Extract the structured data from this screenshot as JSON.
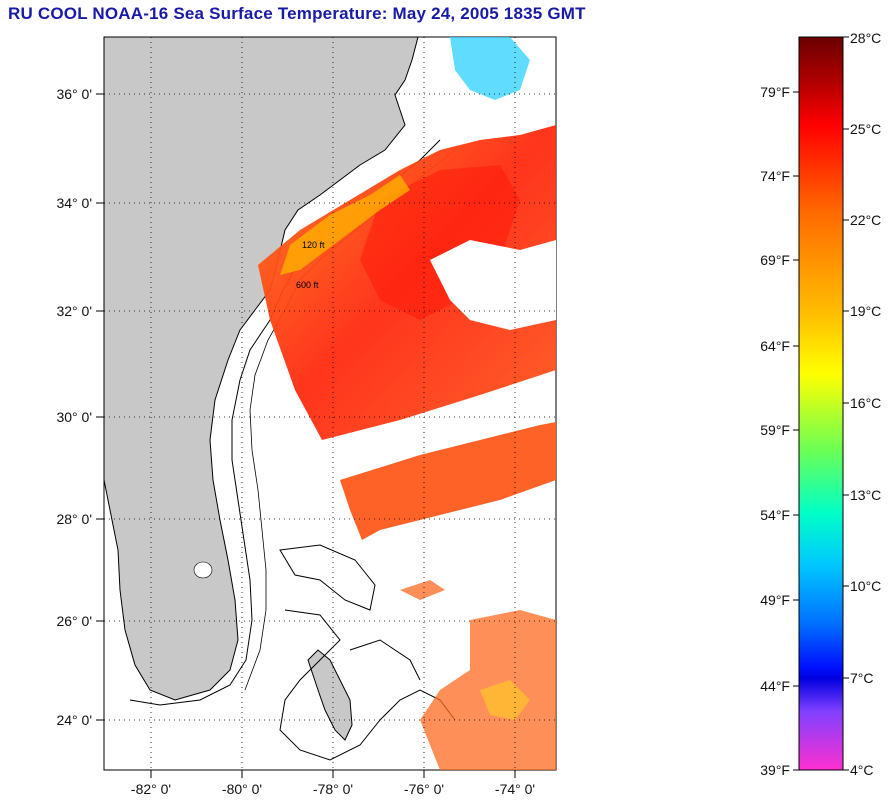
{
  "title": "RU COOL  NOAA-16  Sea Surface Temperature:  May 24, 2005 1835 GMT",
  "map": {
    "lon_range": [
      -83.0,
      -73.0
    ],
    "lat_range": [
      23.0,
      37.0
    ],
    "grid": "dotted",
    "lat_ticks": [
      "36° 0'",
      "34° 0'",
      "32° 0'",
      "30° 0'",
      "28° 0'",
      "26° 0'",
      "24° 0'"
    ],
    "lon_ticks": [
      "-82° 0'",
      "-80° 0'",
      "-78° 0'",
      "-76° 0'",
      "-74° 0'"
    ],
    "isobath_labels": [
      "120 ft",
      "600 ft"
    ],
    "colors": {
      "land": "#c8c8c8",
      "ocean_no_data": "#ffffff",
      "coast": "#000000",
      "grid": "#000000"
    }
  },
  "colorbar": {
    "range_c": [
      4,
      28
    ],
    "celsius_labels": [
      "28°C",
      "25°C",
      "22°C",
      "19°C",
      "16°C",
      "13°C",
      "10°C",
      "7°C",
      "4°C"
    ],
    "fahrenheit_labels": [
      "79°F",
      "74°F",
      "69°F",
      "64°F",
      "59°F",
      "54°F",
      "49°F",
      "44°F",
      "39°F"
    ]
  }
}
